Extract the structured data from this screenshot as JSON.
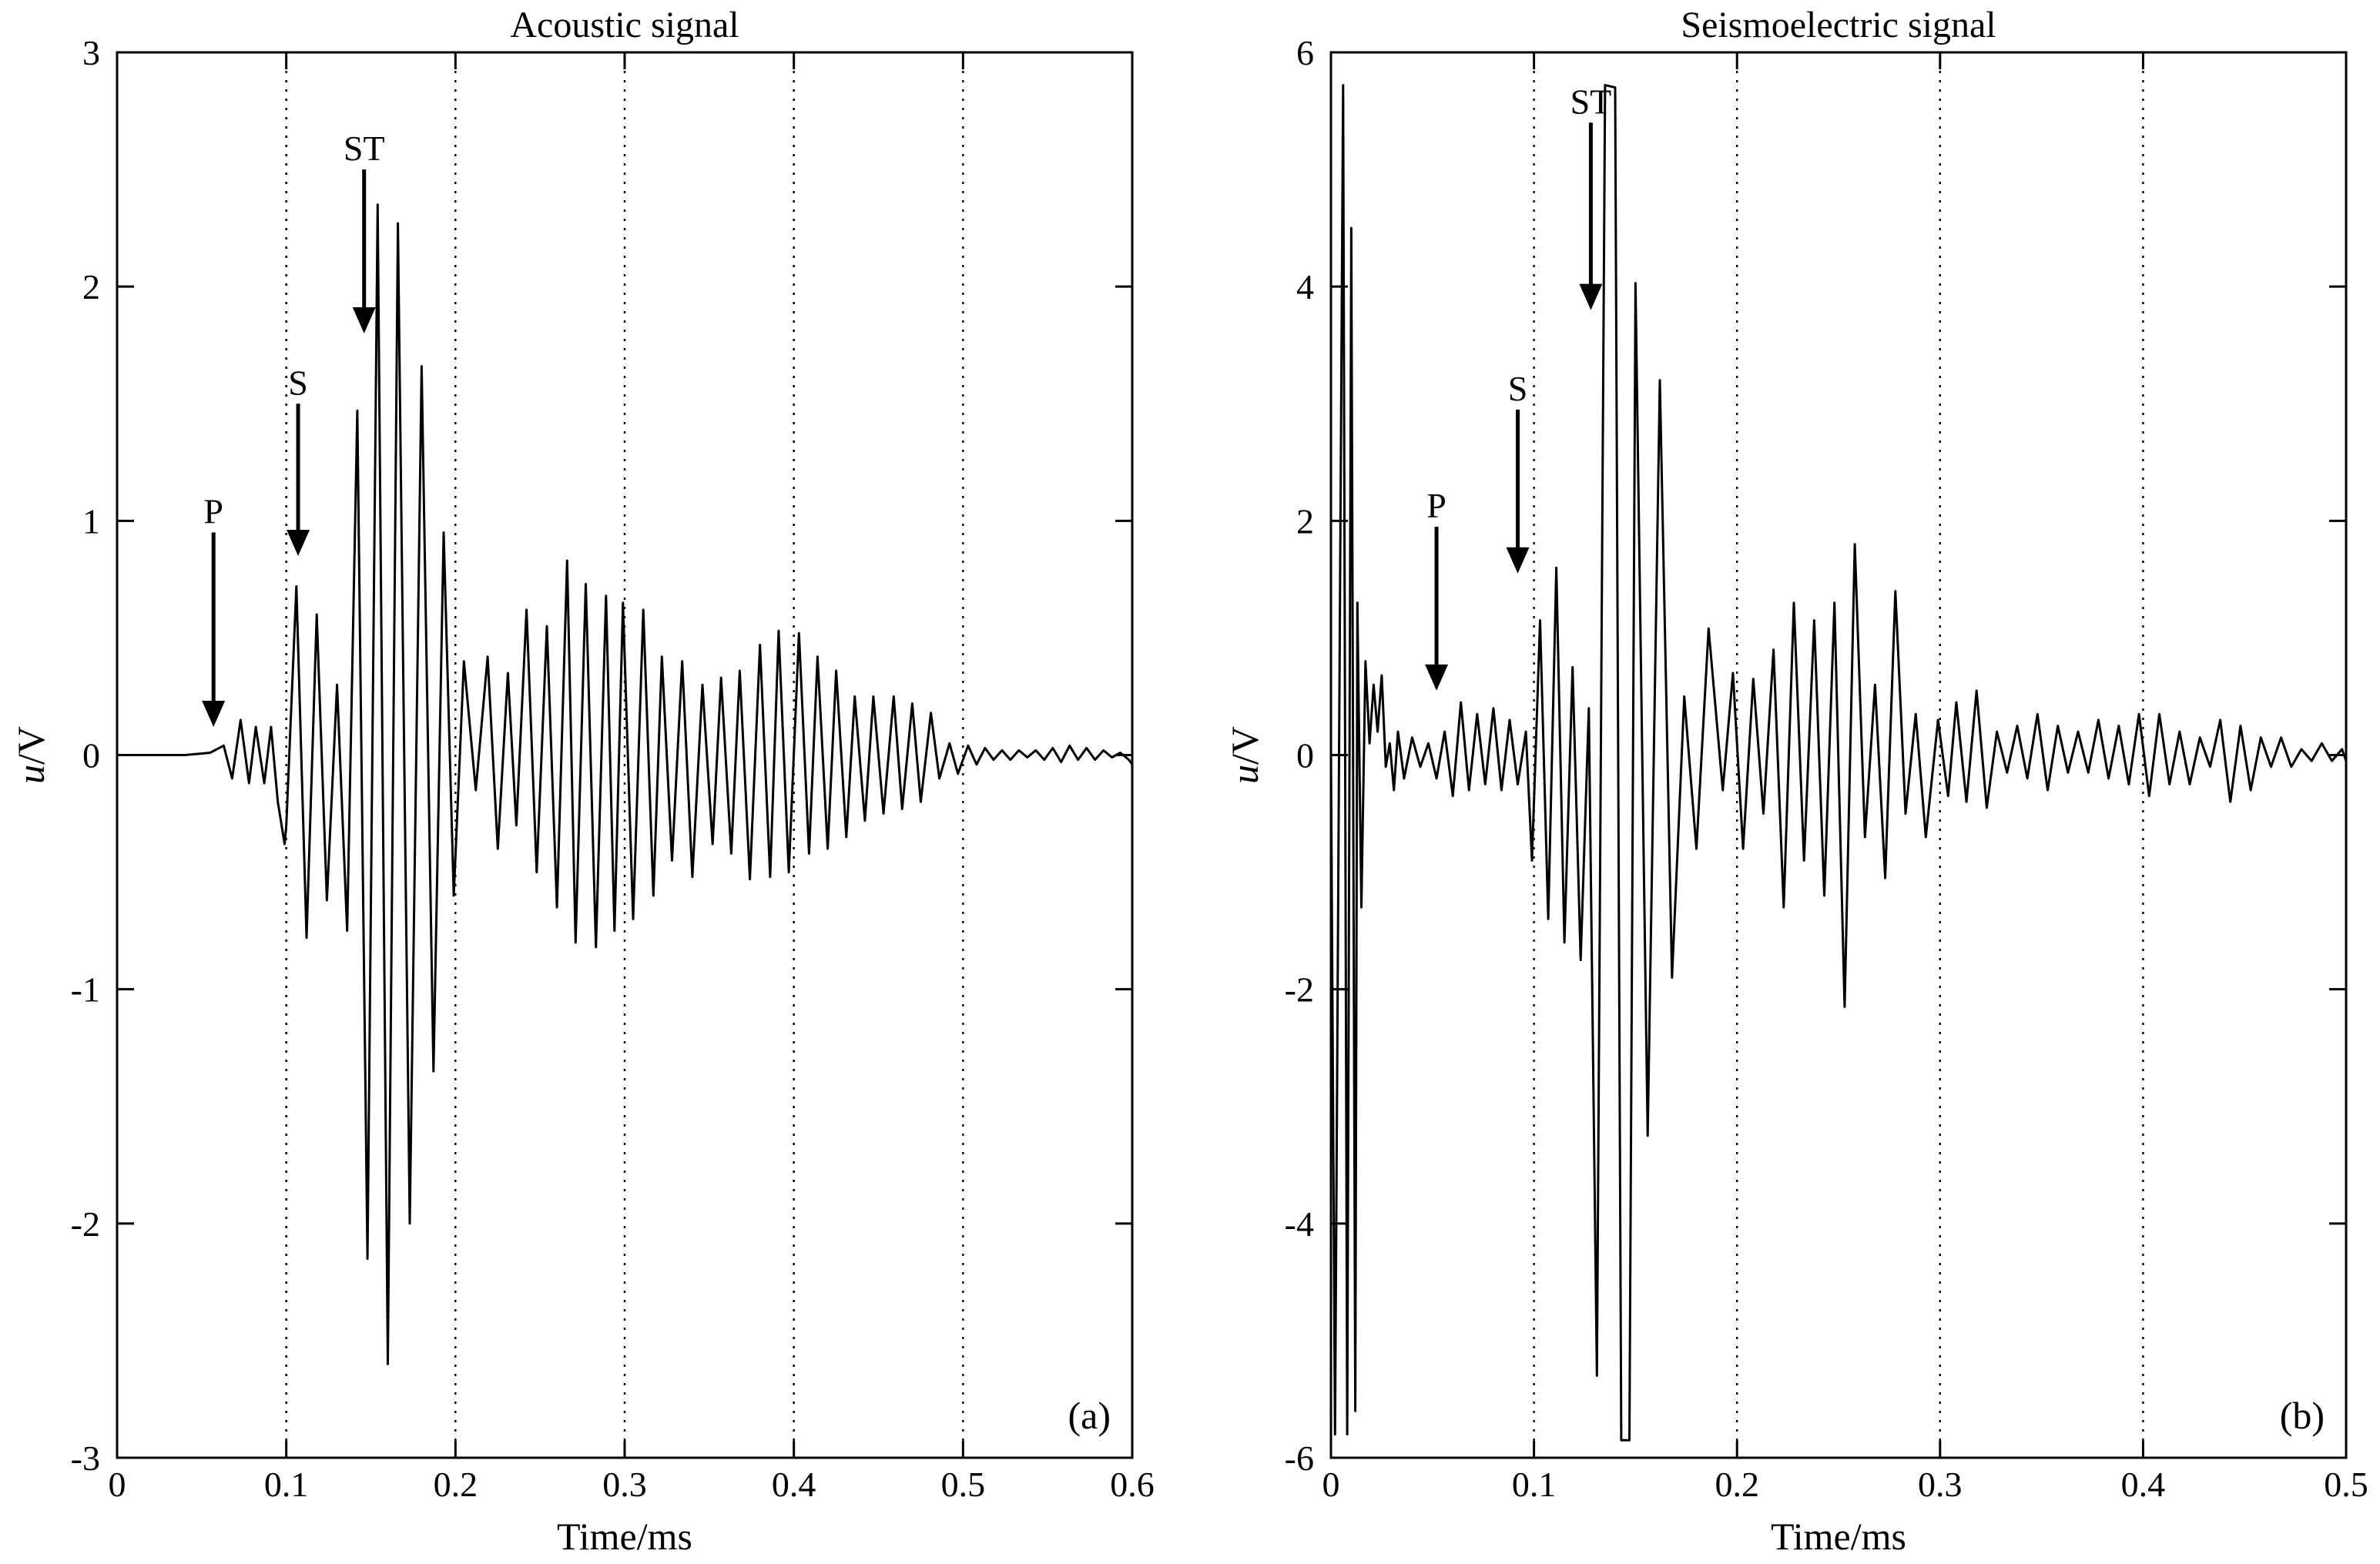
{
  "chart_data": [
    {
      "type": "line",
      "title": "Acoustic signal",
      "xlabel": "Time/ms",
      "ylabel_italic": "u",
      "ylabel_rest": "/V",
      "panel_label": "(a)",
      "xlim": [
        0,
        0.6
      ],
      "ylim": [
        -3,
        3
      ],
      "xticks": [
        0,
        0.1,
        0.2,
        0.3,
        0.4,
        0.5,
        0.6
      ],
      "xtick_labels": [
        "0",
        "0.1",
        "0.2",
        "0.3",
        "0.4",
        "0.5",
        "0.6"
      ],
      "yticks": [
        -3,
        -2,
        -1,
        0,
        1,
        2,
        3
      ],
      "ytick_labels": [
        "-3",
        "-2",
        "-1",
        "0",
        "1",
        "2",
        "3"
      ],
      "vertical_grid": [
        0.1,
        0.2,
        0.3,
        0.4,
        0.5
      ],
      "arrows": [
        {
          "label": "P",
          "x": 0.057,
          "y_tail": 0.95,
          "y_head": 0.12
        },
        {
          "label": "S",
          "x": 0.107,
          "y_tail": 1.5,
          "y_head": 0.85
        },
        {
          "label": "ST",
          "x": 0.146,
          "y_tail": 2.5,
          "y_head": 1.8
        }
      ],
      "series": [
        {
          "x": [
            0,
            0.04,
            0.055,
            0.063,
            0.068,
            0.073,
            0.078,
            0.082,
            0.087,
            0.091,
            0.095,
            0.099,
            0.1,
            0.106,
            0.112,
            0.118,
            0.124,
            0.13,
            0.136,
            0.142,
            0.148,
            0.154,
            0.16,
            0.166,
            0.173,
            0.18,
            0.187,
            0.193,
            0.199,
            0.205,
            0.212,
            0.219,
            0.225,
            0.231,
            0.236,
            0.242,
            0.248,
            0.254,
            0.26,
            0.266,
            0.271,
            0.277,
            0.283,
            0.289,
            0.294,
            0.299,
            0.305,
            0.311,
            0.317,
            0.322,
            0.328,
            0.334,
            0.34,
            0.346,
            0.352,
            0.357,
            0.363,
            0.368,
            0.374,
            0.38,
            0.386,
            0.391,
            0.397,
            0.403,
            0.409,
            0.414,
            0.42,
            0.425,
            0.431,
            0.436,
            0.442,
            0.447,
            0.453,
            0.459,
            0.464,
            0.47,
            0.475,
            0.481,
            0.486,
            0.492,
            0.497,
            0.503,
            0.508,
            0.513,
            0.518,
            0.523,
            0.528,
            0.533,
            0.538,
            0.543,
            0.548,
            0.553,
            0.558,
            0.563,
            0.568,
            0.573,
            0.578,
            0.583,
            0.588,
            0.593,
            0.598,
            0.6
          ],
          "y": [
            0,
            0,
            0.01,
            0.04,
            -0.1,
            0.15,
            -0.12,
            0.12,
            -0.12,
            0.12,
            -0.2,
            -0.38,
            -0.3,
            0.72,
            -0.78,
            0.6,
            -0.62,
            0.3,
            -0.75,
            1.47,
            -2.15,
            2.35,
            -2.6,
            2.27,
            -2.0,
            1.66,
            -1.35,
            0.95,
            -0.6,
            0.4,
            -0.15,
            0.42,
            -0.4,
            0.35,
            -0.3,
            0.62,
            -0.5,
            0.55,
            -0.65,
            0.83,
            -0.8,
            0.73,
            -0.82,
            0.68,
            -0.75,
            0.65,
            -0.7,
            0.62,
            -0.6,
            0.42,
            -0.45,
            0.4,
            -0.52,
            0.3,
            -0.38,
            0.33,
            -0.42,
            0.36,
            -0.53,
            0.47,
            -0.52,
            0.53,
            -0.5,
            0.52,
            -0.42,
            0.42,
            -0.4,
            0.36,
            -0.35,
            0.25,
            -0.28,
            0.25,
            -0.25,
            0.25,
            -0.23,
            0.22,
            -0.2,
            0.18,
            -0.1,
            0.05,
            -0.08,
            0.04,
            -0.04,
            0.03,
            -0.02,
            0.02,
            -0.02,
            0.02,
            -0.01,
            0.02,
            -0.02,
            0.03,
            -0.03,
            0.04,
            -0.02,
            0.03,
            -0.02,
            0.02,
            -0.01,
            0.01,
            -0.02,
            -0.04
          ]
        }
      ]
    },
    {
      "type": "line",
      "title": "Seismoelectric signal",
      "xlabel": "Time/ms",
      "ylabel_italic": "u",
      "ylabel_rest": "/V",
      "panel_label": "(b)",
      "xlim": [
        0,
        0.5
      ],
      "ylim": [
        -6,
        6
      ],
      "xticks": [
        0,
        0.1,
        0.2,
        0.3,
        0.4,
        0.5
      ],
      "xtick_labels": [
        "0",
        "0.1",
        "0.2",
        "0.3",
        "0.4",
        "0.5"
      ],
      "yticks": [
        -6,
        -4,
        -2,
        0,
        2,
        4,
        6
      ],
      "ytick_labels": [
        "-6",
        "-4",
        "-2",
        "0",
        "2",
        "4",
        "6"
      ],
      "vertical_grid": [
        0.1,
        0.2,
        0.3,
        0.4
      ],
      "arrows": [
        {
          "label": "P",
          "x": 0.052,
          "y_tail": 1.95,
          "y_head": 0.55
        },
        {
          "label": "S",
          "x": 0.092,
          "y_tail": 2.95,
          "y_head": 1.55
        },
        {
          "label": "ST",
          "x": 0.128,
          "y_tail": 5.4,
          "y_head": 3.8
        }
      ],
      "series": [
        {
          "x": [
            0,
            0.002,
            0.004,
            0.006,
            0.008,
            0.01,
            0.012,
            0.013,
            0.015,
            0.017,
            0.019,
            0.021,
            0.023,
            0.025,
            0.027,
            0.029,
            0.031,
            0.033,
            0.036,
            0.04,
            0.044,
            0.048,
            0.052,
            0.056,
            0.06,
            0.064,
            0.068,
            0.072,
            0.076,
            0.08,
            0.084,
            0.088,
            0.092,
            0.096,
            0.099,
            0.103,
            0.107,
            0.111,
            0.115,
            0.119,
            0.123,
            0.127,
            0.131,
            0.135,
            0.14,
            0.143,
            0.147,
            0.15,
            0.156,
            0.162,
            0.168,
            0.174,
            0.18,
            0.186,
            0.193,
            0.198,
            0.203,
            0.208,
            0.213,
            0.218,
            0.223,
            0.228,
            0.233,
            0.238,
            0.243,
            0.248,
            0.253,
            0.258,
            0.263,
            0.268,
            0.273,
            0.278,
            0.283,
            0.288,
            0.293,
            0.299,
            0.304,
            0.308,
            0.313,
            0.318,
            0.323,
            0.328,
            0.333,
            0.338,
            0.343,
            0.348,
            0.353,
            0.358,
            0.363,
            0.368,
            0.373,
            0.378,
            0.383,
            0.388,
            0.393,
            0.398,
            0.403,
            0.408,
            0.413,
            0.418,
            0.423,
            0.428,
            0.433,
            0.438,
            0.443,
            0.448,
            0.453,
            0.458,
            0.463,
            0.468,
            0.473,
            0.478,
            0.483,
            0.488,
            0.493,
            0.498,
            0.5
          ],
          "y": [
            0,
            -5.8,
            0,
            5.72,
            -5.8,
            4.5,
            -5.6,
            1.3,
            -1.3,
            0.8,
            0.1,
            0.6,
            0.2,
            0.68,
            -0.1,
            0.1,
            -0.3,
            0.2,
            -0.2,
            0.15,
            -0.1,
            0.1,
            -0.2,
            0.2,
            -0.35,
            0.45,
            -0.3,
            0.35,
            -0.25,
            0.4,
            -0.3,
            0.3,
            -0.25,
            0.2,
            -0.9,
            1.15,
            -1.4,
            1.6,
            -1.6,
            0.75,
            -1.75,
            0.4,
            -5.3,
            5.72,
            5.7,
            -5.85,
            -5.85,
            4.03,
            -3.25,
            3.2,
            -1.9,
            0.5,
            -0.8,
            1.08,
            -0.3,
            0.7,
            -0.8,
            0.65,
            -0.5,
            0.9,
            -1.3,
            1.3,
            -0.9,
            1.15,
            -1.2,
            1.3,
            -2.15,
            1.8,
            -0.7,
            0.6,
            -1.05,
            1.4,
            -0.5,
            0.35,
            -0.7,
            0.3,
            -0.35,
            0.45,
            -0.4,
            0.55,
            -0.45,
            0.2,
            -0.15,
            0.25,
            -0.2,
            0.35,
            -0.3,
            0.25,
            -0.15,
            0.2,
            -0.15,
            0.3,
            -0.2,
            0.25,
            -0.25,
            0.35,
            -0.35,
            0.35,
            -0.25,
            0.2,
            -0.25,
            0.15,
            -0.1,
            0.3,
            -0.4,
            0.25,
            -0.3,
            0.15,
            -0.1,
            0.15,
            -0.1,
            0.05,
            -0.05,
            0.1,
            -0.05,
            0.05,
            -0.05
          ]
        }
      ]
    }
  ]
}
